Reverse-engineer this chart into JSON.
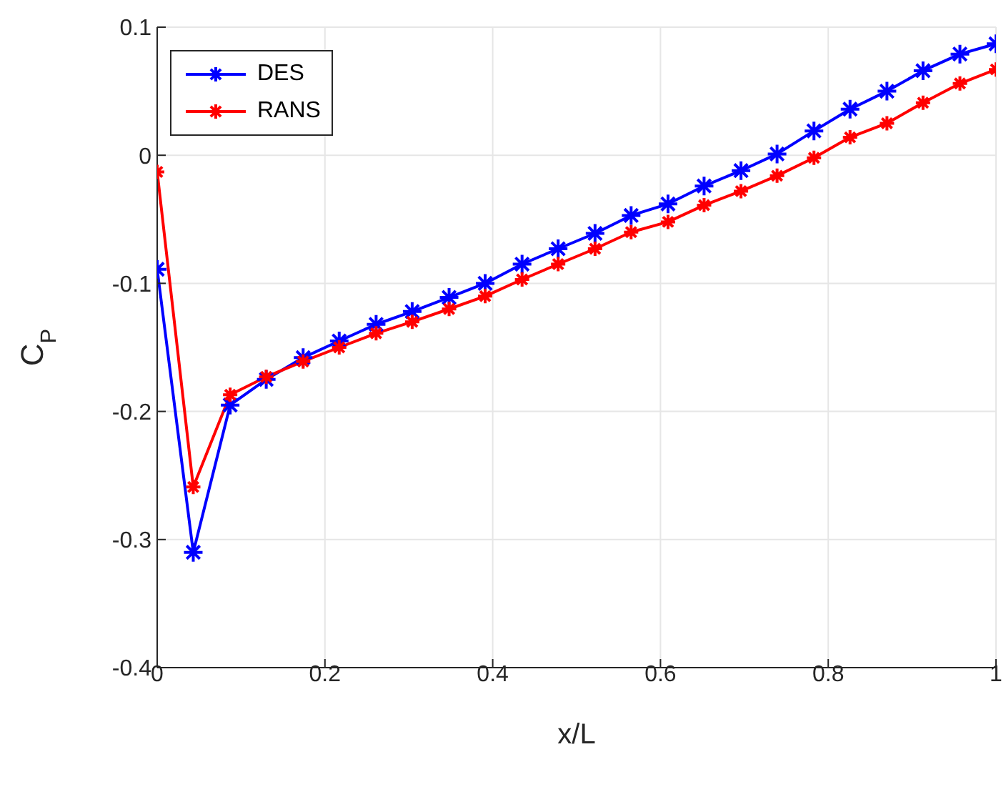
{
  "chart_data": {
    "type": "line",
    "xlabel": "x/L",
    "ylabel": "C$_{P}$",
    "x": [
      0,
      0.043,
      0.087,
      0.13,
      0.174,
      0.217,
      0.261,
      0.304,
      0.348,
      0.391,
      0.435,
      0.478,
      0.522,
      0.565,
      0.609,
      0.652,
      0.696,
      0.739,
      0.783,
      0.826,
      0.87,
      0.913,
      0.957,
      1
    ],
    "series": [
      {
        "name": "DES",
        "color": "#0000ff",
        "values": [
          -0.089,
          -0.31,
          -0.195,
          -0.175,
          -0.158,
          -0.145,
          -0.132,
          -0.122,
          -0.111,
          -0.1,
          -0.085,
          -0.073,
          -0.061,
          -0.047,
          -0.038,
          -0.024,
          -0.012,
          0.001,
          0.019,
          0.036,
          0.05,
          0.066,
          0.079,
          0.087
        ]
      },
      {
        "name": "RANS",
        "color": "#ff0000",
        "values": [
          -0.013,
          -0.259,
          -0.187,
          -0.173,
          -0.161,
          -0.15,
          -0.139,
          -0.13,
          -0.12,
          -0.11,
          -0.097,
          -0.085,
          -0.073,
          -0.06,
          -0.052,
          -0.039,
          -0.028,
          -0.016,
          -0.002,
          0.014,
          0.025,
          0.041,
          0.056,
          0.067
        ]
      }
    ],
    "xlim": [
      0,
      1
    ],
    "xticks": [
      0,
      0.2,
      0.4,
      0.6,
      0.8,
      1
    ],
    "ylim": [
      -0.4,
      0.1
    ],
    "yticks": [
      -0.4,
      -0.3,
      -0.2,
      -0.1,
      0,
      0.1
    ],
    "grid": true,
    "legend": "top left",
    "marker": "cross",
    "line_style": "solid"
  }
}
